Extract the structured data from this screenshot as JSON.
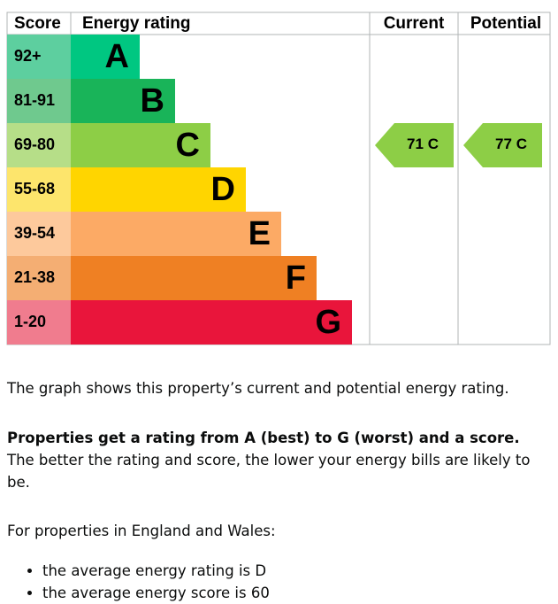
{
  "table": {
    "headers": [
      "Score",
      "Energy rating",
      "Current",
      "Potential"
    ],
    "rows": [
      {
        "score": "92+",
        "rating": "A",
        "color": "#00c781",
        "score_color": "#5dcf9f"
      },
      {
        "score": "81-91",
        "rating": "B",
        "color": "#19b459",
        "score_color": "#6fc98e"
      },
      {
        "score": "69-80",
        "rating": "C",
        "color": "#8dce46",
        "score_color": "#b6de88"
      },
      {
        "score": "55-68",
        "rating": "D",
        "color": "#ffd500",
        "score_color": "#fde56c"
      },
      {
        "score": "39-54",
        "rating": "E",
        "color": "#fcaa65",
        "score_color": "#fdc99c"
      },
      {
        "score": "21-38",
        "rating": "F",
        "color": "#ef8023",
        "score_color": "#f4ae73"
      },
      {
        "score": "1-20",
        "rating": "G",
        "color": "#e9153b",
        "score_color": "#f07c8e"
      }
    ]
  },
  "current": {
    "score": 71,
    "rating": "C"
  },
  "potential": {
    "score": 77,
    "rating": "C"
  },
  "text": {
    "p1": "The graph shows this property’s current and potential energy rating.",
    "p2_bold": "Properties get a rating from A (best) to G (worst) and a score.",
    "p2_rest": "The better the rating and score, the lower your energy bills are likely to be.",
    "p3": "For properties in England and Wales:",
    "bullets": [
      "the average energy rating is D",
      "the average energy score is 60"
    ]
  }
}
